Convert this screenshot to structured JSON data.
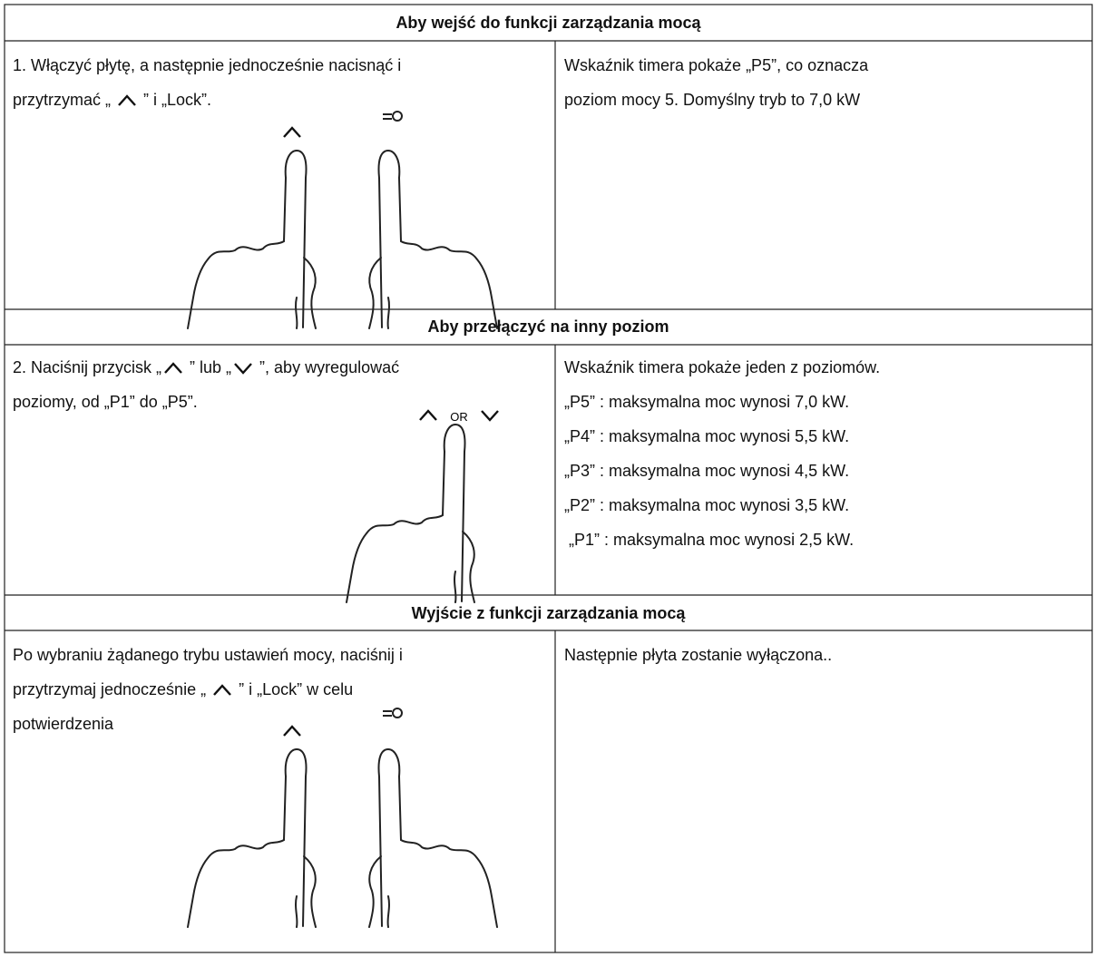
{
  "sections": [
    {
      "heading": "Aby wejść do funkcji zarządzania mocą",
      "left": [
        [
          "1. Włączyć płytę, a następnie jednocześnie nacisnąć i"
        ],
        [
          "przytrzymać „ ",
          " ” i „Lock”."
        ]
      ],
      "right": [
        "Wskaźnik timera pokaże „P5”, co oznacza",
        "poziom mocy 5. Domyślny tryb to 7,0 kW"
      ]
    },
    {
      "heading": "Aby przełączyć na inny poziom",
      "left": [
        [
          "2. Naciśnij przycisk „",
          " ” lub „",
          " ”, aby wyregulować"
        ],
        [
          "poziomy, od „P1” do „P5”."
        ]
      ],
      "gesture_label": "OR",
      "right": [
        "Wskaźnik timera pokaże jeden z poziomów.",
        "„P5” : maksymalna moc wynosi 7,0 kW.",
        "„P4” : maksymalna moc wynosi 5,5 kW.",
        "„P3” : maksymalna moc wynosi 4,5 kW.",
        "„P2” : maksymalna moc wynosi 3,5 kW.",
        " „P1” : maksymalna moc wynosi 2,5 kW."
      ]
    },
    {
      "heading": "Wyjście z funkcji zarządzania mocą",
      "left": [
        [
          "Po wybraniu żądanego trybu ustawień mocy, naciśnij i"
        ],
        [
          "przytrzymaj jednocześnie „ ",
          " ” i „Lock” w celu"
        ],
        [
          "potwierdzenia"
        ]
      ],
      "right": [
        "Następnie płyta zostanie wyłączona.."
      ]
    }
  ]
}
